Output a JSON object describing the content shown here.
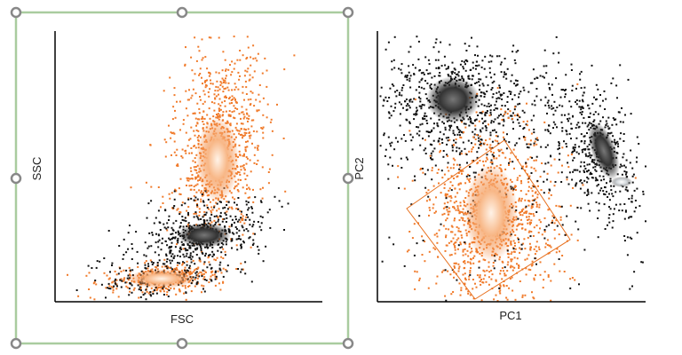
{
  "plots": [
    {
      "x_label": "FSC",
      "y_label": "SSC"
    },
    {
      "x_label": "PC1",
      "y_label": "PC2"
    }
  ]
}
